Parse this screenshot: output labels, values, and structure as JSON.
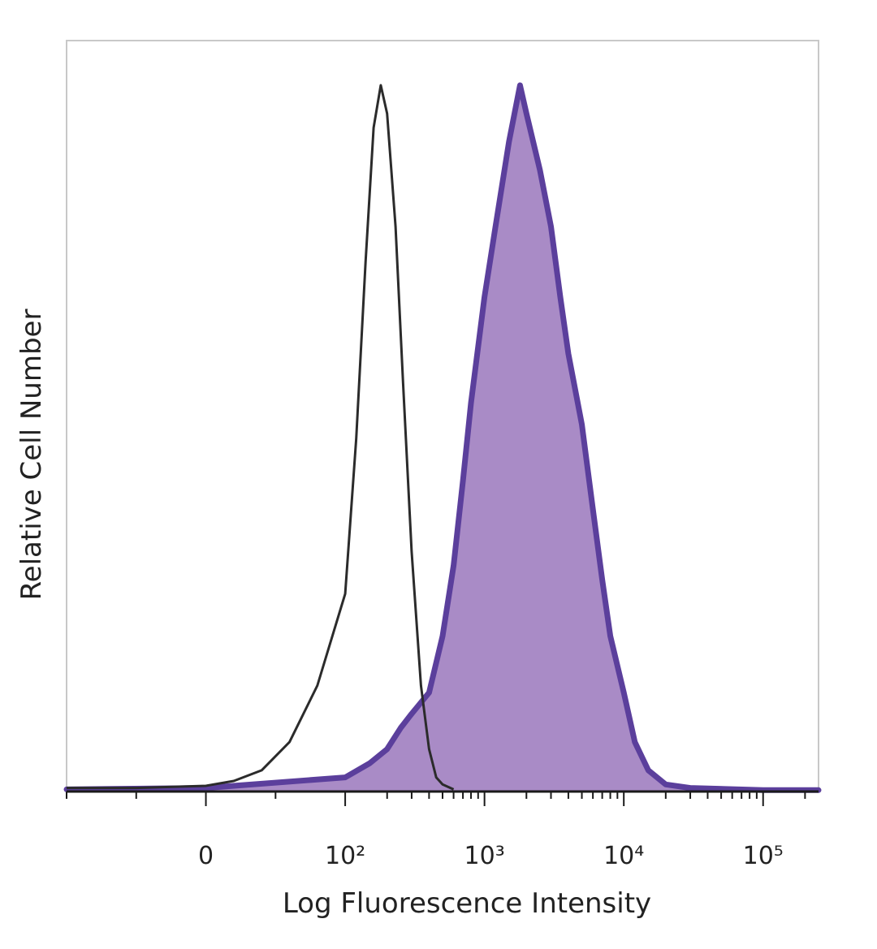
{
  "chart_data": {
    "type": "area",
    "xlabel": "Log Fluorescence Intensity",
    "ylabel": "Relative Cell Number",
    "x_scale": "biexponential",
    "x_range": [
      -100,
      250000
    ],
    "y_range": [
      0,
      100
    ],
    "grid": false,
    "x_ticks": [
      {
        "value": 0,
        "label": "0"
      },
      {
        "value": 100,
        "label": "10²"
      },
      {
        "value": 1000,
        "label": "10³"
      },
      {
        "value": 10000,
        "label": "10⁴"
      },
      {
        "value": 100000,
        "label": "10⁵"
      }
    ],
    "series": [
      {
        "style": "outline",
        "color": "#2b2b2b",
        "x": [
          -100,
          -50,
          0,
          20,
          40,
          60,
          80,
          100,
          120,
          140,
          160,
          180,
          200,
          230,
          260,
          300,
          350,
          400,
          450,
          500,
          600
        ],
        "y": [
          0.5,
          0.5,
          0.8,
          1.5,
          3,
          7,
          15,
          28,
          50,
          75,
          94,
          100,
          96,
          80,
          58,
          34,
          15,
          6,
          2,
          1,
          0.3
        ]
      },
      {
        "style": "filled",
        "color": "#5b3f9c",
        "fill": "#a98bc6",
        "x": [
          -100,
          0,
          100,
          150,
          200,
          250,
          300,
          400,
          500,
          600,
          700,
          800,
          1000,
          1200,
          1500,
          1800,
          2000,
          2500,
          3000,
          3500,
          4000,
          5000,
          6000,
          7000,
          8000,
          10000,
          12000,
          15000,
          20000,
          30000,
          100000,
          250000
        ],
        "y": [
          0.3,
          0.5,
          2,
          4,
          6,
          9,
          11,
          14,
          22,
          32,
          44,
          55,
          70,
          80,
          92,
          100,
          96,
          88,
          80,
          70,
          62,
          52,
          40,
          30,
          22,
          14,
          7,
          3,
          1,
          0.5,
          0.2,
          0.2
        ]
      }
    ]
  }
}
